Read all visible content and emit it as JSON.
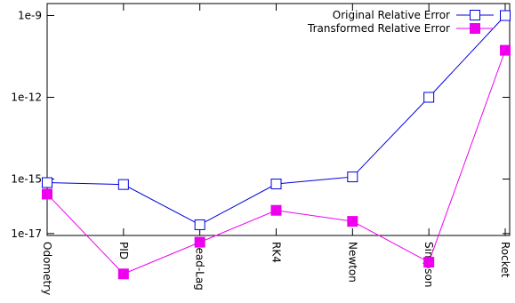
{
  "chart_data": {
    "type": "line",
    "y_scale": "log",
    "ylim": [
      1e-18,
      1e-09
    ],
    "categories": [
      "Odometry",
      "PID",
      "Lead-Lag",
      "RK4",
      "Newton",
      "Simpson",
      "Rocket"
    ],
    "y_ticks": [
      {
        "value": 1e-09,
        "label": "1e-9"
      },
      {
        "value": 1e-12,
        "label": "1e-12"
      },
      {
        "value": 1e-15,
        "label": "1e-15"
      },
      {
        "value": 1e-17,
        "label": "1e-17"
      }
    ],
    "legend_position": "top-right",
    "grid": false,
    "series": [
      {
        "name": "Original Relative Error",
        "color": "#0000dd",
        "marker": "open-square",
        "values": [
          7.4e-16,
          6.3e-16,
          2.1e-17,
          6.6e-16,
          1.2e-15,
          1e-12,
          1e-09
        ]
      },
      {
        "name": "Transformed Relative Error",
        "color": "#ee00ee",
        "marker": "filled-square",
        "values": [
          2.8e-16,
          3.3e-19,
          4.8e-18,
          7.1e-17,
          2.8e-17,
          8.9e-19,
          5.3e-11
        ]
      }
    ]
  }
}
